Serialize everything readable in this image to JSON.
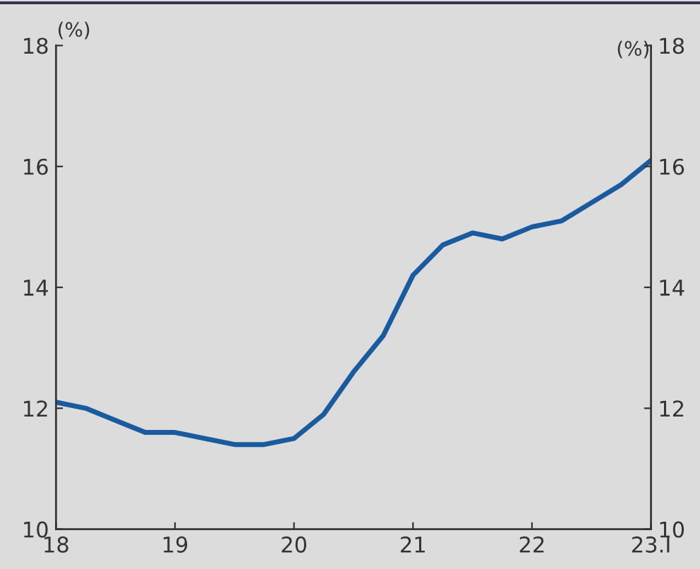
{
  "chart_data": {
    "type": "line",
    "ylabel": "(%)",
    "y2label": "(%)",
    "x": [
      18,
      18.25,
      18.5,
      18.75,
      19,
      19.25,
      19.5,
      19.75,
      20,
      20.25,
      20.5,
      20.75,
      21,
      21.25,
      21.5,
      21.75,
      22,
      22.25,
      22.5,
      22.75,
      23
    ],
    "series": [
      {
        "color": "#1a5a9e",
        "values": [
          12.1,
          12.0,
          11.8,
          11.6,
          11.6,
          11.5,
          11.4,
          11.4,
          11.5,
          11.9,
          12.6,
          13.2,
          14.2,
          14.7,
          14.9,
          14.8,
          15.0,
          15.1,
          15.4,
          15.7,
          16.1
        ]
      }
    ],
    "xlim": [
      18,
      23
    ],
    "xticks": [
      18,
      19,
      20,
      21,
      22,
      {
        "value": 23,
        "label": "23.I"
      }
    ],
    "ylim": [
      10,
      18
    ],
    "yticks": [
      10,
      12,
      14,
      16,
      18
    ],
    "y2lim": [
      10,
      18
    ],
    "y2ticks": [
      10,
      12,
      14,
      16,
      18
    ],
    "grid": false,
    "legend": false,
    "marker": "none",
    "line_style": "solid"
  }
}
